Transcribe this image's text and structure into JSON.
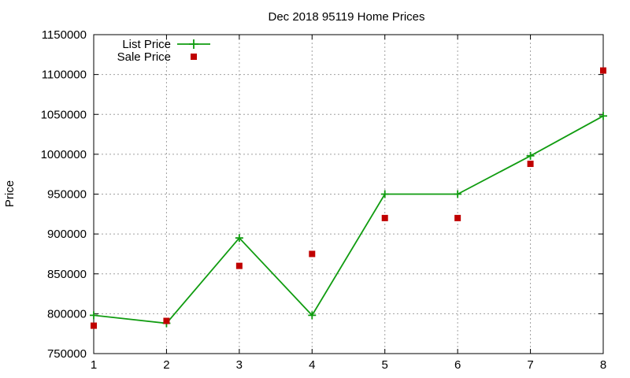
{
  "chart_data": {
    "type": "line",
    "title": "Dec 2018 95119 Home Prices",
    "xlabel": "",
    "ylabel": "Price",
    "xlim": [
      1,
      8
    ],
    "ylim": [
      750000,
      1150000
    ],
    "x_ticks": [
      "1",
      "2",
      "3",
      "4",
      "5",
      "6",
      "7",
      "8"
    ],
    "y_ticks": [
      "750000",
      "800000",
      "850000",
      "900000",
      "950000",
      "1000000",
      "1050000",
      "1100000",
      "1150000"
    ],
    "grid": true,
    "legend_position": "top-left",
    "x": [
      1,
      2,
      3,
      4,
      5,
      6,
      7,
      8
    ],
    "series": [
      {
        "name": "List Price",
        "style": "line-with-plus-markers",
        "color": "#109c10",
        "values": [
          798000,
          788000,
          895000,
          798000,
          950000,
          950000,
          998000,
          1048000
        ]
      },
      {
        "name": "Sale Price",
        "style": "square-markers",
        "color": "#c00000",
        "values": [
          785000,
          791000,
          860000,
          875000,
          920000,
          920000,
          988000,
          1105000
        ]
      }
    ]
  }
}
